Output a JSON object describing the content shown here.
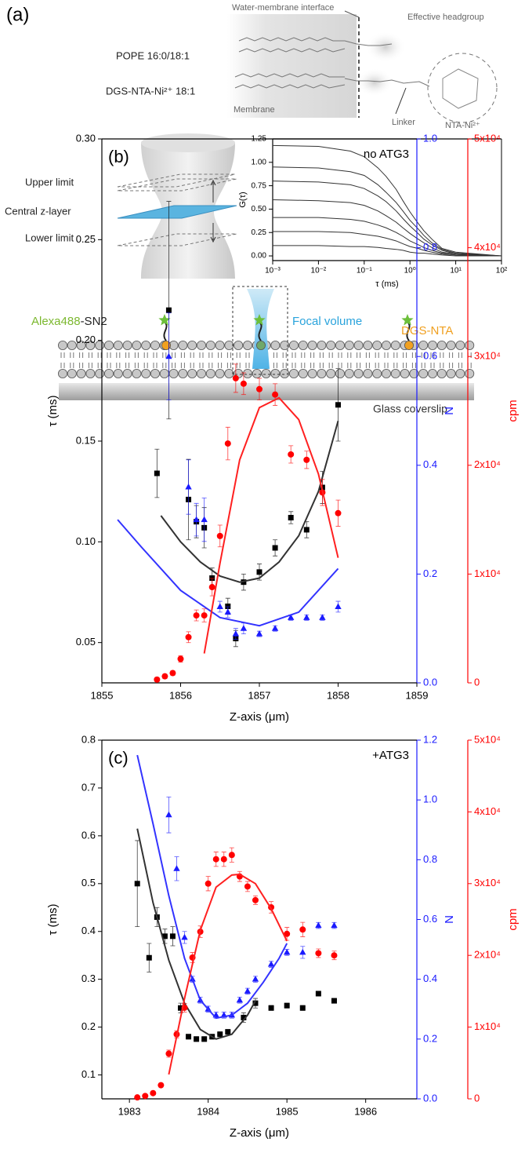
{
  "diagram": {
    "panel_label": "(a)",
    "interface_label": "Water-membrane interface",
    "headgroup_label": "Effective headgroup",
    "lipid_1": "POPE 16:0/18:1",
    "lipid_2": "DGS-NTA-Ni²⁺ 18:1",
    "membrane_label": "Membrane",
    "linker_label": "Linker",
    "nta_label": "NTA-Ni²⁺",
    "upper_limit": "Upper limit",
    "central_layer": "Central z-layer",
    "lower_limit": "Lower limit",
    "probe_dye": "Alexa488",
    "probe_suffix": "-SN2",
    "focal_volume": "Focal volume",
    "anchor_label": "DGS-NTA",
    "substrate_label": "Glass coverslip"
  },
  "chart_data": [
    {
      "type": "line",
      "x_label": "τ (ms)",
      "y_label": "G(τ)",
      "xlog": true,
      "xlim": [
        0.001,
        100
      ],
      "xticks": [
        {
          "value": 0.001,
          "label": "10⁻³"
        },
        {
          "value": 0.01,
          "label": "10⁻²"
        },
        {
          "value": 0.1,
          "label": "10⁻¹"
        },
        {
          "value": 1,
          "label": "10⁰"
        },
        {
          "value": 10,
          "label": "10¹"
        },
        {
          "value": 100,
          "label": "10²"
        }
      ],
      "ylim": [
        -0.05,
        1.25
      ],
      "yticks": [
        {
          "value": 0,
          "label": "0.00"
        },
        0.25,
        {
          "value": 0.5,
          "label": "0.50"
        },
        0.75,
        {
          "value": 1,
          "label": "1.00"
        },
        1.25
      ],
      "x": [
        0.001,
        0.01,
        0.05,
        0.1,
        0.2,
        0.3,
        0.5,
        0.7,
        1,
        1.5,
        2,
        3,
        5,
        10,
        100
      ],
      "series": [
        {
          "color": "#333333",
          "values": [
            1.18,
            1.17,
            1.12,
            1.06,
            0.94,
            0.85,
            0.71,
            0.59,
            0.47,
            0.35,
            0.27,
            0.18,
            0.08,
            0.04,
            0
          ]
        },
        {
          "color": "#333333",
          "values": [
            0.95,
            0.94,
            0.9,
            0.86,
            0.76,
            0.68,
            0.57,
            0.48,
            0.38,
            0.29,
            0.22,
            0.14,
            0.07,
            0.03,
            0
          ]
        },
        {
          "color": "#333333",
          "values": [
            0.8,
            0.79,
            0.76,
            0.72,
            0.64,
            0.58,
            0.48,
            0.4,
            0.32,
            0.24,
            0.18,
            0.12,
            0.06,
            0.02,
            0
          ]
        },
        {
          "color": "#333333",
          "values": [
            0.6,
            0.59,
            0.57,
            0.54,
            0.48,
            0.43,
            0.36,
            0.3,
            0.24,
            0.18,
            0.14,
            0.09,
            0.04,
            0.02,
            0
          ]
        },
        {
          "color": "#333333",
          "values": [
            0.41,
            0.41,
            0.39,
            0.37,
            0.33,
            0.3,
            0.25,
            0.21,
            0.16,
            0.12,
            0.09,
            0.06,
            0.03,
            0.01,
            0
          ]
        },
        {
          "color": "#333333",
          "values": [
            0.26,
            0.26,
            0.25,
            0.23,
            0.21,
            0.19,
            0.16,
            0.13,
            0.1,
            0.08,
            0.06,
            0.04,
            0.02,
            0.01,
            0
          ]
        },
        {
          "color": "#333333",
          "values": [
            0.11,
            0.11,
            0.1,
            0.1,
            0.09,
            0.08,
            0.07,
            0.06,
            0.04,
            0.03,
            0.03,
            0.02,
            0.01,
            0,
            0
          ]
        }
      ]
    },
    {
      "type": "scatter",
      "panel_label": "(b)",
      "annotation": "no ATG3",
      "x_label": "Z-axis (μm)",
      "y_label": "τ (ms)",
      "y2_label": "N",
      "y3_label": "cpm",
      "y2_color": "#1a1aff",
      "y3_color": "#ff0000",
      "xlim": [
        1855,
        1859
      ],
      "xticks": [
        1855,
        1856,
        1857,
        1858,
        1859
      ],
      "ylim": [
        0.03,
        0.3
      ],
      "yticks": [
        0.05,
        {
          "value": 0.1,
          "label": "0.10"
        },
        0.15,
        {
          "value": 0.2,
          "label": "0.20"
        },
        0.25,
        {
          "value": 0.3,
          "label": "0.30"
        }
      ],
      "y2lim": [
        0,
        1
      ],
      "y2ticks": [
        {
          "value": 0,
          "label": "0.0"
        },
        0.2,
        0.4,
        0.6,
        0.8,
        {
          "value": 1,
          "label": "1.0"
        }
      ],
      "y3lim": [
        0,
        50000
      ],
      "y3ticks": [
        0,
        {
          "value": 10000,
          "label": "1x10⁴"
        },
        {
          "value": 20000,
          "label": "2x10⁴"
        },
        {
          "value": 30000,
          "label": "3x10⁴"
        },
        {
          "value": 40000,
          "label": "4x10⁴"
        },
        {
          "value": 50000,
          "label": "5x10⁴"
        }
      ],
      "series": [
        {
          "type": "scatter",
          "marker": "square",
          "color": "#000000",
          "x": [
            1855.7,
            1855.85,
            1856.1,
            1856.2,
            1856.3,
            1856.4,
            1856.6,
            1856.7,
            1856.8,
            1857.0,
            1857.2,
            1857.4,
            1857.6,
            1857.8,
            1858.0
          ],
          "values": [
            0.134,
            0.215,
            0.121,
            0.11,
            0.107,
            0.082,
            0.068,
            0.052,
            0.08,
            0.085,
            0.097,
            0.112,
            0.106,
            0.127,
            0.168
          ],
          "errors": [
            0.012,
            0.054,
            0.02,
            0.008,
            0.01,
            0.005,
            0.004,
            0.004,
            0.004,
            0.004,
            0.004,
            0.003,
            0.004,
            0.008,
            0.018
          ]
        },
        {
          "type": "line",
          "color": "#333333",
          "x": [
            1855.75,
            1856,
            1856.25,
            1856.5,
            1856.75,
            1857,
            1857.25,
            1857.5,
            1857.75,
            1858
          ],
          "values": [
            0.113,
            0.1,
            0.09,
            0.083,
            0.08,
            0.082,
            0.09,
            0.103,
            0.125,
            0.16
          ]
        },
        {
          "type": "scatter",
          "marker": "triangle",
          "color": "#1a1aff",
          "axis": "y2",
          "x": [
            1855.85,
            1856.1,
            1856.2,
            1856.3,
            1856.5,
            1856.6,
            1856.7,
            1856.8,
            1857.0,
            1857.2,
            1857.4,
            1857.6,
            1857.8,
            1858.0
          ],
          "values": [
            0.6,
            0.36,
            0.3,
            0.3,
            0.14,
            0.13,
            0.09,
            0.1,
            0.09,
            0.1,
            0.12,
            0.12,
            0.12,
            0.14
          ],
          "errors": [
            0.08,
            0.05,
            0.03,
            0.04,
            0.01,
            0.01,
            0.01,
            0.01,
            0.005,
            0.005,
            0.005,
            0.005,
            0.005,
            0.01
          ]
        },
        {
          "type": "line",
          "color": "#3333ff",
          "axis": "y2",
          "x": [
            1855.2,
            1855.5,
            1856,
            1856.5,
            1857,
            1857.5,
            1858
          ],
          "values": [
            0.3,
            0.25,
            0.17,
            0.12,
            0.105,
            0.13,
            0.21
          ]
        },
        {
          "type": "scatter",
          "marker": "circle",
          "color": "#ff0000",
          "axis": "y3",
          "x": [
            1855.7,
            1855.8,
            1855.9,
            1856.0,
            1856.1,
            1856.2,
            1856.3,
            1856.4,
            1856.5,
            1856.6,
            1856.7,
            1856.8,
            1857.0,
            1857.2,
            1857.4,
            1857.6,
            1857.8,
            1858.0
          ],
          "values": [
            300,
            600,
            900,
            2200,
            4200,
            6200,
            6200,
            8800,
            13500,
            22000,
            28000,
            27500,
            27000,
            26500,
            21000,
            20500,
            17500,
            15600
          ],
          "errors": [
            200,
            200,
            200,
            300,
            500,
            500,
            600,
            800,
            1000,
            1500,
            1300,
            1000,
            1000,
            1000,
            800,
            800,
            1200,
            1200
          ]
        },
        {
          "type": "line",
          "color": "#ff2020",
          "axis": "y3",
          "x": [
            1856.3,
            1856.5,
            1856.75,
            1857,
            1857.25,
            1857.5,
            1857.75,
            1858
          ],
          "values": [
            2700,
            11000,
            20500,
            25300,
            26200,
            24200,
            19200,
            11500
          ]
        }
      ]
    },
    {
      "type": "scatter",
      "panel_label": "(c)",
      "annotation": "+ATG3",
      "x_label": "Z-axis (μm)",
      "y_label": "τ (ms)",
      "y2_label": "N",
      "y3_label": "cpm",
      "y2_color": "#1a1aff",
      "y3_color": "#ff0000",
      "xlim": [
        1982.65,
        1986.65
      ],
      "xticks": [
        1983,
        1984,
        1985,
        1986
      ],
      "ylim": [
        0.05,
        0.8
      ],
      "yticks": [
        0.1,
        0.2,
        0.3,
        0.4,
        0.5,
        0.6,
        0.7,
        0.8
      ],
      "y2lim": [
        0,
        1.2
      ],
      "y2ticks": [
        {
          "value": 0,
          "label": "0.0"
        },
        0.2,
        0.4,
        0.6,
        0.8,
        {
          "value": 1,
          "label": "1.0"
        },
        1.2
      ],
      "y3lim": [
        0,
        50000
      ],
      "y3ticks": [
        0,
        {
          "value": 10000,
          "label": "1x10⁴"
        },
        {
          "value": 20000,
          "label": "2x10⁴"
        },
        {
          "value": 30000,
          "label": "3x10⁴"
        },
        {
          "value": 40000,
          "label": "4x10⁴"
        },
        {
          "value": 50000,
          "label": "5x10⁴"
        }
      ],
      "series": [
        {
          "type": "scatter",
          "marker": "square",
          "color": "#000000",
          "x": [
            1983.1,
            1983.25,
            1983.35,
            1983.45,
            1983.55,
            1983.65,
            1983.75,
            1983.85,
            1983.95,
            1984.05,
            1984.15,
            1984.25,
            1984.45,
            1984.6,
            1984.8,
            1985.0,
            1985.2,
            1985.4,
            1985.6
          ],
          "values": [
            0.5,
            0.345,
            0.43,
            0.39,
            0.39,
            0.24,
            0.18,
            0.175,
            0.175,
            0.18,
            0.185,
            0.19,
            0.22,
            0.25,
            0.24,
            0.245,
            0.24,
            0.27,
            0.255
          ],
          "errors": [
            0.09,
            0.03,
            0.02,
            0.015,
            0.02,
            0.01,
            0.005,
            0.005,
            0.005,
            0.005,
            0.005,
            0.005,
            0.01,
            0.01,
            0.005,
            0.005,
            0.005,
            0.005,
            0.005
          ]
        },
        {
          "type": "line",
          "color": "#333333",
          "x": [
            1983.1,
            1983.3,
            1983.5,
            1983.7,
            1983.9,
            1984.1,
            1984.3,
            1984.5,
            1984.6
          ],
          "values": [
            0.615,
            0.46,
            0.34,
            0.25,
            0.195,
            0.175,
            0.185,
            0.225,
            0.255
          ]
        },
        {
          "type": "scatter",
          "marker": "triangle",
          "color": "#1a1aff",
          "axis": "y2",
          "x": [
            1983.5,
            1983.6,
            1983.7,
            1983.8,
            1983.9,
            1984.0,
            1984.1,
            1984.2,
            1984.3,
            1984.4,
            1984.5,
            1984.6,
            1984.8,
            1985.0,
            1985.2,
            1985.4,
            1985.6
          ],
          "values": [
            0.95,
            0.77,
            0.54,
            0.4,
            0.33,
            0.3,
            0.28,
            0.28,
            0.28,
            0.33,
            0.36,
            0.4,
            0.45,
            0.49,
            0.49,
            0.58,
            0.58
          ],
          "errors": [
            0.06,
            0.04,
            0.02,
            0.01,
            0.01,
            0.01,
            0.01,
            0.01,
            0.01,
            0.01,
            0.01,
            0.01,
            0.01,
            0.01,
            0.02,
            0.01,
            0.01
          ]
        },
        {
          "type": "line",
          "color": "#3333ff",
          "axis": "y2",
          "x": [
            1983.1,
            1983.3,
            1983.5,
            1983.7,
            1983.9,
            1984.1,
            1984.3,
            1984.5,
            1984.7,
            1984.9,
            1985.0
          ],
          "values": [
            1.15,
            0.92,
            0.68,
            0.47,
            0.33,
            0.27,
            0.28,
            0.32,
            0.39,
            0.47,
            0.52
          ]
        },
        {
          "type": "scatter",
          "marker": "circle",
          "color": "#ff0000",
          "axis": "y3",
          "x": [
            1983.1,
            1983.2,
            1983.3,
            1983.4,
            1983.5,
            1983.6,
            1983.7,
            1983.8,
            1983.9,
            1984.0,
            1984.1,
            1984.2,
            1984.3,
            1984.4,
            1984.5,
            1984.6,
            1984.8,
            1985.0,
            1985.2,
            1985.4,
            1985.6
          ],
          "values": [
            200,
            400,
            800,
            1900,
            6300,
            9000,
            12700,
            19700,
            23300,
            30000,
            33400,
            33400,
            34000,
            31000,
            29600,
            27700,
            26700,
            23000,
            23600,
            20300,
            20000
          ],
          "errors": [
            100,
            100,
            100,
            200,
            500,
            500,
            600,
            700,
            800,
            1000,
            1000,
            1000,
            1000,
            700,
            700,
            600,
            800,
            900,
            1000,
            600,
            600
          ]
        },
        {
          "type": "line",
          "color": "#ff2020",
          "axis": "y3",
          "x": [
            1983.5,
            1983.7,
            1983.9,
            1984.1,
            1984.3,
            1984.4,
            1984.6,
            1984.8,
            1985.0
          ],
          "values": [
            3400,
            14000,
            23500,
            29500,
            31200,
            31300,
            30000,
            26500,
            22000
          ]
        }
      ]
    }
  ]
}
